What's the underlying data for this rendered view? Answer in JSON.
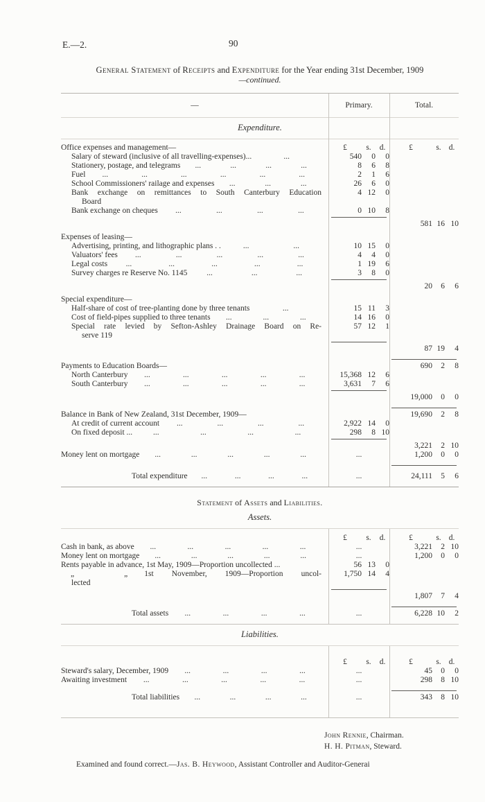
{
  "colors": {
    "ink": "#2e2d2b",
    "paper": "#fcfcfa"
  },
  "page": {
    "doc_ref": "E.—2.",
    "page_number": "90"
  },
  "caption": {
    "segments": [
      {
        "text": "General Statement",
        "sc": true
      },
      {
        "text": " of ",
        "sc": false
      },
      {
        "text": "Receipts",
        "sc": true
      },
      {
        "text": " and ",
        "sc": false
      },
      {
        "text": "Expenditure",
        "sc": true
      },
      {
        "text": " for the Year ending 31st December, 1909",
        "sc": false
      }
    ],
    "continued": "—continued."
  },
  "table_headers": {
    "dash": "—",
    "primary": "Primary.",
    "total": "Total.",
    "pound": "£",
    "shillings": "s.",
    "pence": "d."
  },
  "expenditure": {
    "heading": "Expenditure.",
    "rows": [
      {
        "label": "Office expenses and management—",
        "ph": true,
        "th": true
      },
      {
        "label": "Salary of steward (inclusive of all travelling-expenses)...",
        "ind": 1,
        "dots": 1,
        "p": [
          "540",
          "0",
          "0"
        ]
      },
      {
        "label": "Stationery, postage, and telegrams",
        "ind": 1,
        "dots": 4,
        "p": [
          "8",
          "6",
          "8"
        ]
      },
      {
        "label": "Fuel",
        "ind": 1,
        "dots": 6,
        "p": [
          "2",
          "1",
          "6"
        ]
      },
      {
        "label": "School Commissioners' railage and expenses",
        "ind": 1,
        "dots": 3,
        "p": [
          "26",
          "6",
          "0"
        ]
      },
      {
        "label": "Bank exchange on remittances to South Canterbury Education",
        "label2": "Board",
        "ind": 1,
        "just": true,
        "p": [
          "4",
          "12",
          "0"
        ]
      },
      {
        "label": "Bank exchange on cheques",
        "ind": 1,
        "dots": 4,
        "p": [
          "0",
          "10",
          "8"
        ]
      },
      {
        "hr": "p"
      },
      {
        "t": [
          "581",
          "16",
          "10"
        ]
      },
      {
        "label": "Expenses of leasing—",
        "sec": true
      },
      {
        "label": "Advertising, printing, and lithographic plans . .",
        "ind": 1,
        "dots": 2,
        "p": [
          "10",
          "15",
          "0"
        ]
      },
      {
        "label": "Valuators' fees",
        "ind": 1,
        "dots": 5,
        "p": [
          "4",
          "4",
          "0"
        ]
      },
      {
        "label": "Legal costs",
        "ind": 1,
        "dots": 5,
        "p": [
          "1",
          "19",
          "6"
        ]
      },
      {
        "label": "Survey charges re Reserve No. 1145",
        "ind": 1,
        "dots": 3,
        "p": [
          "3",
          "8",
          "0"
        ]
      },
      {
        "hr": "p"
      },
      {
        "t": [
          "20",
          "6",
          "6"
        ]
      },
      {
        "label": "Special expenditure—",
        "sec": true
      },
      {
        "label": "Half-share of cost of tree-planting done by three tenants",
        "ind": 1,
        "dots": 1,
        "p": [
          "15",
          "11",
          "3"
        ]
      },
      {
        "label": "Cost of field-pipes supplied to three tenants",
        "ind": 1,
        "dots": 3,
        "p": [
          "14",
          "16",
          "0"
        ]
      },
      {
        "label": "Special rate levied by Sefton-Ashley Drainage Board on Re-",
        "label2": "serve 119",
        "ind": 1,
        "just": true,
        "p": [
          "57",
          "12",
          "1"
        ]
      },
      {
        "hr": "p"
      },
      {
        "t": [
          "87",
          "19",
          "4"
        ]
      },
      {
        "hr": "t",
        "sec": true
      },
      {
        "label": "Payments to Education Boards—",
        "t": [
          "690",
          "2",
          "8"
        ]
      },
      {
        "label": "North Canterbury",
        "ind": 1,
        "dots": 5,
        "p": [
          "15,368",
          "12",
          "6"
        ]
      },
      {
        "label": "South Canterbury",
        "ind": 1,
        "dots": 5,
        "p": [
          "3,631",
          "7",
          "6"
        ]
      },
      {
        "hr": "p"
      },
      {
        "t": [
          "19,000",
          "0",
          "0"
        ]
      },
      {
        "hr": "t",
        "sec": true
      },
      {
        "label": "Balance in Bank of New Zealand, 31st December, 1909—",
        "t": [
          "19,690",
          "2",
          "8"
        ]
      },
      {
        "label": "At credit of current account",
        "ind": 1,
        "dots": 4,
        "p": [
          "2,922",
          "14",
          "0"
        ]
      },
      {
        "label": "On fixed deposit ...",
        "ind": 1,
        "dots": 4,
        "p": [
          "298",
          "8",
          "10"
        ]
      },
      {
        "hr": "p"
      },
      {
        "t": [
          "3,221",
          "2",
          "10"
        ]
      },
      {
        "label": "Money lent on mortgage",
        "dots": 5,
        "p": "dots",
        "t": [
          "1,200",
          "0",
          "0"
        ]
      },
      {
        "hr": "t",
        "sec": true
      },
      {
        "label": "Total expenditure",
        "center": true,
        "dots": 4,
        "p": "dots",
        "t": [
          "24,111",
          "5",
          "6"
        ],
        "sec": true
      }
    ]
  },
  "assets_title": {
    "segments": [
      {
        "text": "Statement",
        "sc": true
      },
      {
        "text": " of ",
        "sc": false
      },
      {
        "text": "Assets",
        "sc": true
      },
      {
        "text": " and ",
        "sc": false
      },
      {
        "text": "Liabilities.",
        "sc": true
      }
    ]
  },
  "assets": {
    "heading": "Assets.",
    "ditto_mark": "„",
    "rows": [
      {
        "ph": true,
        "th": true
      },
      {
        "label": "Cash in bank, as above",
        "dots": 5,
        "p": "dots",
        "t": [
          "3,221",
          "2",
          "10"
        ]
      },
      {
        "label": "Money lent on mortgage",
        "dots": 5,
        "p": "dots",
        "t": [
          "1,200",
          "0",
          "0"
        ]
      },
      {
        "label": "Rents payable in advance, 1st May, 1909—Proportion uncollected ...",
        "p": [
          "56",
          "13",
          "0"
        ]
      },
      {
        "ditto": true,
        "label": "1st November, 1909—Proportion uncol-",
        "p": [
          "1,750",
          "14",
          "4"
        ]
      },
      {
        "label": "lected",
        "ind": 1
      },
      {
        "hr": "p"
      },
      {
        "t": [
          "1,807",
          "7",
          "4"
        ]
      },
      {
        "hr": "t",
        "sec": true
      },
      {
        "label": "Total assets",
        "center": true,
        "dots": 4,
        "p": "dots",
        "t": [
          "6,228",
          "10",
          "2"
        ]
      }
    ]
  },
  "liabilities": {
    "heading": "Liabilities.",
    "rows": [
      {
        "ph": true,
        "th": true
      },
      {
        "label": "Steward's salary, December, 1909",
        "dots": 4,
        "p": "dots",
        "t": [
          "45",
          "0",
          "0"
        ]
      },
      {
        "label": "Awaiting investment",
        "dots": 5,
        "p": "dots",
        "t": [
          "298",
          "8",
          "10"
        ]
      },
      {
        "hr": "t",
        "sec": true
      },
      {
        "label": "Total liabilities",
        "center": true,
        "dots": 4,
        "p": "dots",
        "t": [
          "343",
          "8",
          "10"
        ]
      }
    ]
  },
  "signatures": {
    "lines": [
      {
        "name": "John Rennie",
        "rest": ", Chairman."
      },
      {
        "name": "H. H. Pitman",
        "rest": ", Steward."
      }
    ]
  },
  "audit": {
    "prefix": "Examined and found correct.—",
    "name": "Jas. B. Heywood",
    "rest": ", Assistant Controller and Auditor-Generai"
  }
}
